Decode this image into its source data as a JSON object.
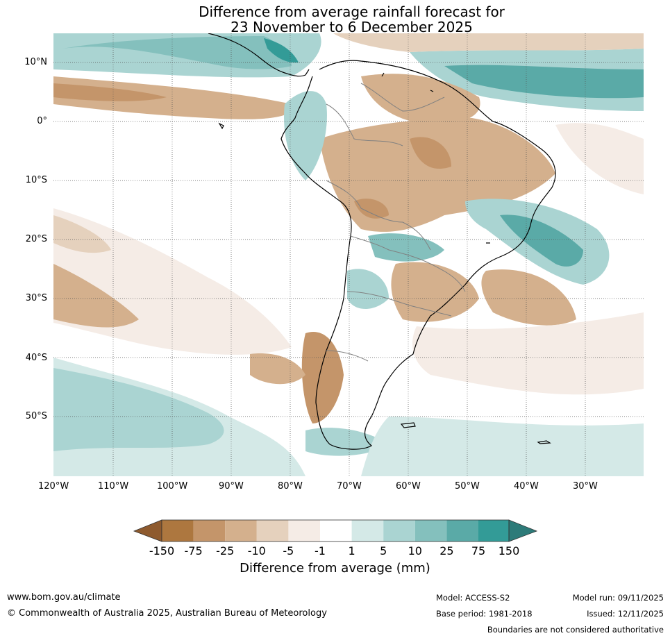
{
  "title": {
    "line1": "Difference from average rainfall forecast for",
    "line2": "23 November to 6 December 2025"
  },
  "axes": {
    "lon_labels": [
      "120°W",
      "110°W",
      "100°W",
      "90°W",
      "80°W",
      "70°W",
      "60°W",
      "50°W",
      "40°W",
      "30°W"
    ],
    "lat_labels": [
      "10°N",
      "0°",
      "10°S",
      "20°S",
      "30°S",
      "40°S",
      "50°S"
    ]
  },
  "colorbar": {
    "title": "Difference from average (mm)",
    "tick_labels": [
      "-150",
      "-75",
      "-25",
      "-10",
      "-5",
      "-1",
      "1",
      "5",
      "10",
      "25",
      "75",
      "150"
    ],
    "colors": [
      "#8e5a2e",
      "#ad773f",
      "#c4956a",
      "#d4b08d",
      "#e5d1bd",
      "#f5ece6",
      "#ffffff",
      "#d4e9e7",
      "#aad4d2",
      "#84c0bd",
      "#5aaaa7",
      "#339b97",
      "#2d7b79"
    ]
  },
  "map_colors": {
    "land_outline": "#000000",
    "border": "#808080",
    "grid": "#555555"
  },
  "footer": {
    "url": "www.bom.gov.au/climate",
    "copyright": "© Commonwealth of Australia 2025, Australian Bureau of Meteorology",
    "model": "Model: ACCESS-S2",
    "base_period": "Base period: 1981-2018",
    "model_run": "Model run: 09/11/2025",
    "issued": "Issued: 12/11/2025",
    "disclaimer": "Boundaries are not considered authoritative"
  }
}
